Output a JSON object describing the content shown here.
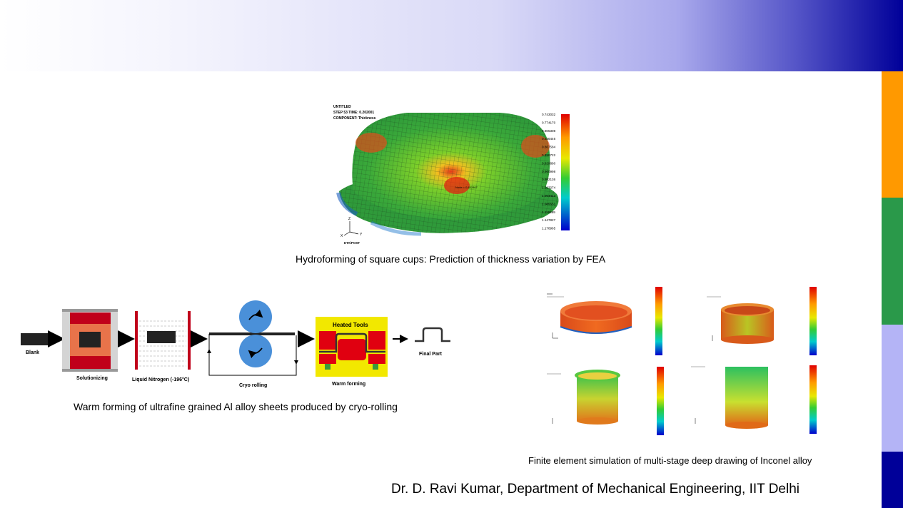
{
  "figure1": {
    "header_lines": [
      "UNTITLED",
      "STEP 53   TIME:   0.202001",
      "COMPONENT: Thickness"
    ],
    "legend_values": [
      "0.743032",
      "0.774170",
      "0.805308",
      "0.836446",
      "0.867584",
      "0.898722",
      "0.929860",
      "0.960998",
      "0.992136",
      "1.023274",
      "1.054413",
      "1.085551",
      "1.116689",
      "1.147827",
      "1.178965"
    ],
    "probe_label": "Node = 0.832467",
    "axis_labels": {
      "z": "Z",
      "x": "X",
      "y": "Y"
    },
    "software_label": "ETA/POST",
    "caption": "Hydroforming of square cups: Prediction of thickness variation by FEA"
  },
  "figure2": {
    "steps": {
      "blank": "Blank",
      "solutionizing": "Solutionizing",
      "liquid_nitrogen": "Liquid Nitrogen (-196°C)",
      "cryo_rolling": "Cryo rolling",
      "heated_tools": "Heated Tools",
      "warm_forming": "Warm forming",
      "final_part": "Final Part"
    },
    "caption": "Warm forming of ultrafine grained Al alloy sheets produced by cryo-rolling"
  },
  "figure3": {
    "caption": "Finite element simulation of multi-stage deep drawing of Inconel alloy"
  },
  "footer": {
    "credit": "Dr. D. Ravi Kumar, Department of Mechanical Engineering, IIT Delhi"
  },
  "colors": {
    "accent_dark_blue": "#000099",
    "side_orange": "#ff9900",
    "side_green": "#2a994a",
    "side_lavender": "#b4b4f6"
  }
}
